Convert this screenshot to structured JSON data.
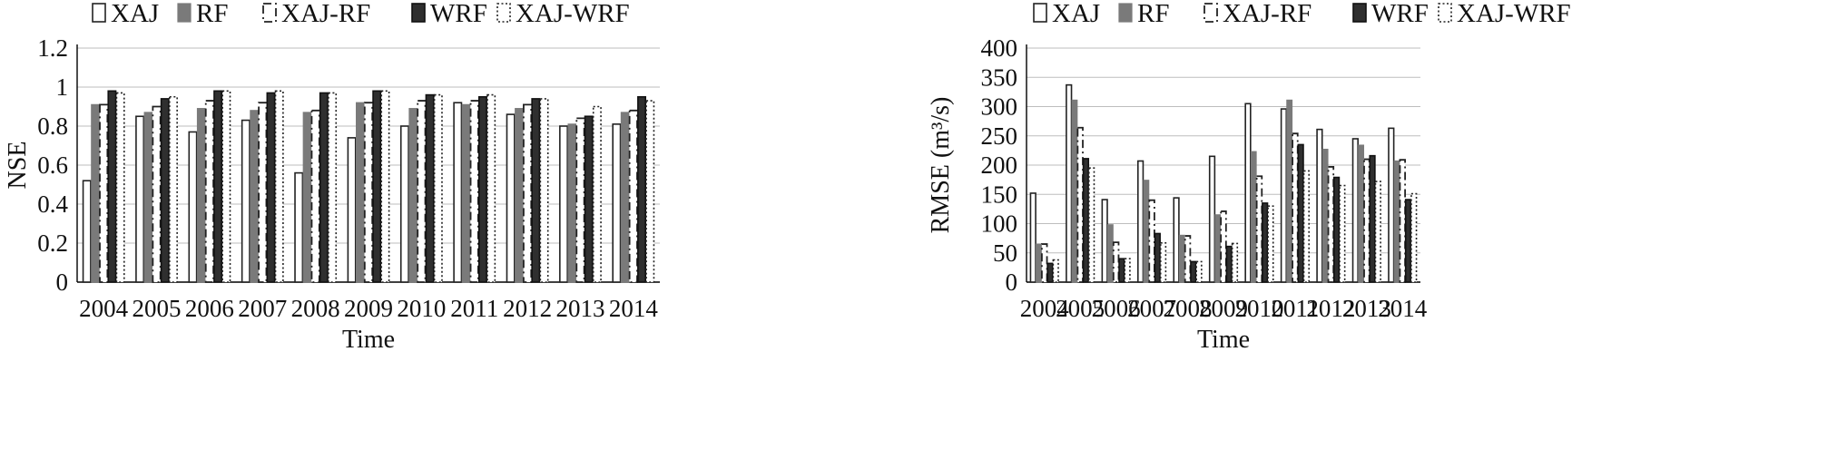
{
  "legend": {
    "items": [
      {
        "label": "XAJ",
        "swatch": "white"
      },
      {
        "label": "RF",
        "swatch": "gray"
      },
      {
        "label": "XAJ-RF",
        "swatch": "dashdot"
      },
      {
        "label": "WRF",
        "swatch": "dark"
      },
      {
        "label": "XAJ-WRF",
        "swatch": "dotted"
      }
    ]
  },
  "colors": {
    "XAJ": "#ffffff",
    "RF": "#7a7a7a",
    "XAJ-RF": "#ffffff",
    "WRF": "#2f2f2f",
    "XAJ-WRF": "#ffffff",
    "outline": "#222222",
    "gridline": "#bdbdbd"
  },
  "chart_data": [
    {
      "type": "bar",
      "title": "",
      "xlabel": "Time",
      "ylabel": "NSE",
      "ylim": [
        0,
        1.2
      ],
      "yticks": [
        "0",
        "0.2",
        "0.4",
        "0.6",
        "0.8",
        "1",
        "1.2"
      ],
      "grid": true,
      "legend_position": "top",
      "categories": [
        "2004",
        "2005",
        "2006",
        "2007",
        "2008",
        "2009",
        "2010",
        "2011",
        "2012",
        "2013",
        "2014"
      ],
      "series": [
        {
          "name": "XAJ",
          "values": [
            0.52,
            0.85,
            0.77,
            0.83,
            0.56,
            0.74,
            0.8,
            0.92,
            0.86,
            0.8,
            0.81
          ]
        },
        {
          "name": "RF",
          "values": [
            0.91,
            0.87,
            0.89,
            0.88,
            0.87,
            0.92,
            0.89,
            0.91,
            0.89,
            0.81,
            0.87
          ]
        },
        {
          "name": "XAJ-RF",
          "values": [
            0.91,
            0.9,
            0.93,
            0.92,
            0.88,
            0.92,
            0.93,
            0.93,
            0.91,
            0.84,
            0.88
          ]
        },
        {
          "name": "WRF",
          "values": [
            0.98,
            0.94,
            0.98,
            0.97,
            0.97,
            0.98,
            0.96,
            0.95,
            0.94,
            0.85,
            0.95
          ]
        },
        {
          "name": "XAJ-WRF",
          "values": [
            0.97,
            0.95,
            0.98,
            0.98,
            0.97,
            0.98,
            0.96,
            0.96,
            0.94,
            0.9,
            0.93
          ]
        }
      ]
    },
    {
      "type": "bar",
      "title": "",
      "xlabel": "Time",
      "ylabel": "RMSE (m³/s)",
      "ylim": [
        0,
        400
      ],
      "yticks": [
        "0",
        "50",
        "100",
        "150",
        "200",
        "250",
        "300",
        "350",
        "400"
      ],
      "grid": true,
      "legend_position": "top",
      "categories": [
        "2004",
        "2005",
        "2006",
        "2007",
        "2008",
        "2009",
        "2010",
        "2011",
        "2012",
        "2013",
        "2014"
      ],
      "series": [
        {
          "name": "XAJ",
          "values": [
            152,
            337,
            141,
            207,
            144,
            215,
            305,
            296,
            261,
            245,
            263
          ]
        },
        {
          "name": "RF",
          "values": [
            65,
            311,
            98,
            174,
            80,
            115,
            223,
            311,
            227,
            234,
            207
          ]
        },
        {
          "name": "XAJ-RF",
          "values": [
            65,
            264,
            68,
            140,
            79,
            121,
            181,
            254,
            197,
            210,
            209
          ]
        },
        {
          "name": "WRF",
          "values": [
            32,
            211,
            40,
            83,
            35,
            61,
            135,
            235,
            179,
            216,
            141
          ]
        },
        {
          "name": "XAJ-WRF",
          "values": [
            38,
            195,
            40,
            67,
            35,
            66,
            130,
            190,
            165,
            172,
            151
          ]
        }
      ]
    }
  ]
}
